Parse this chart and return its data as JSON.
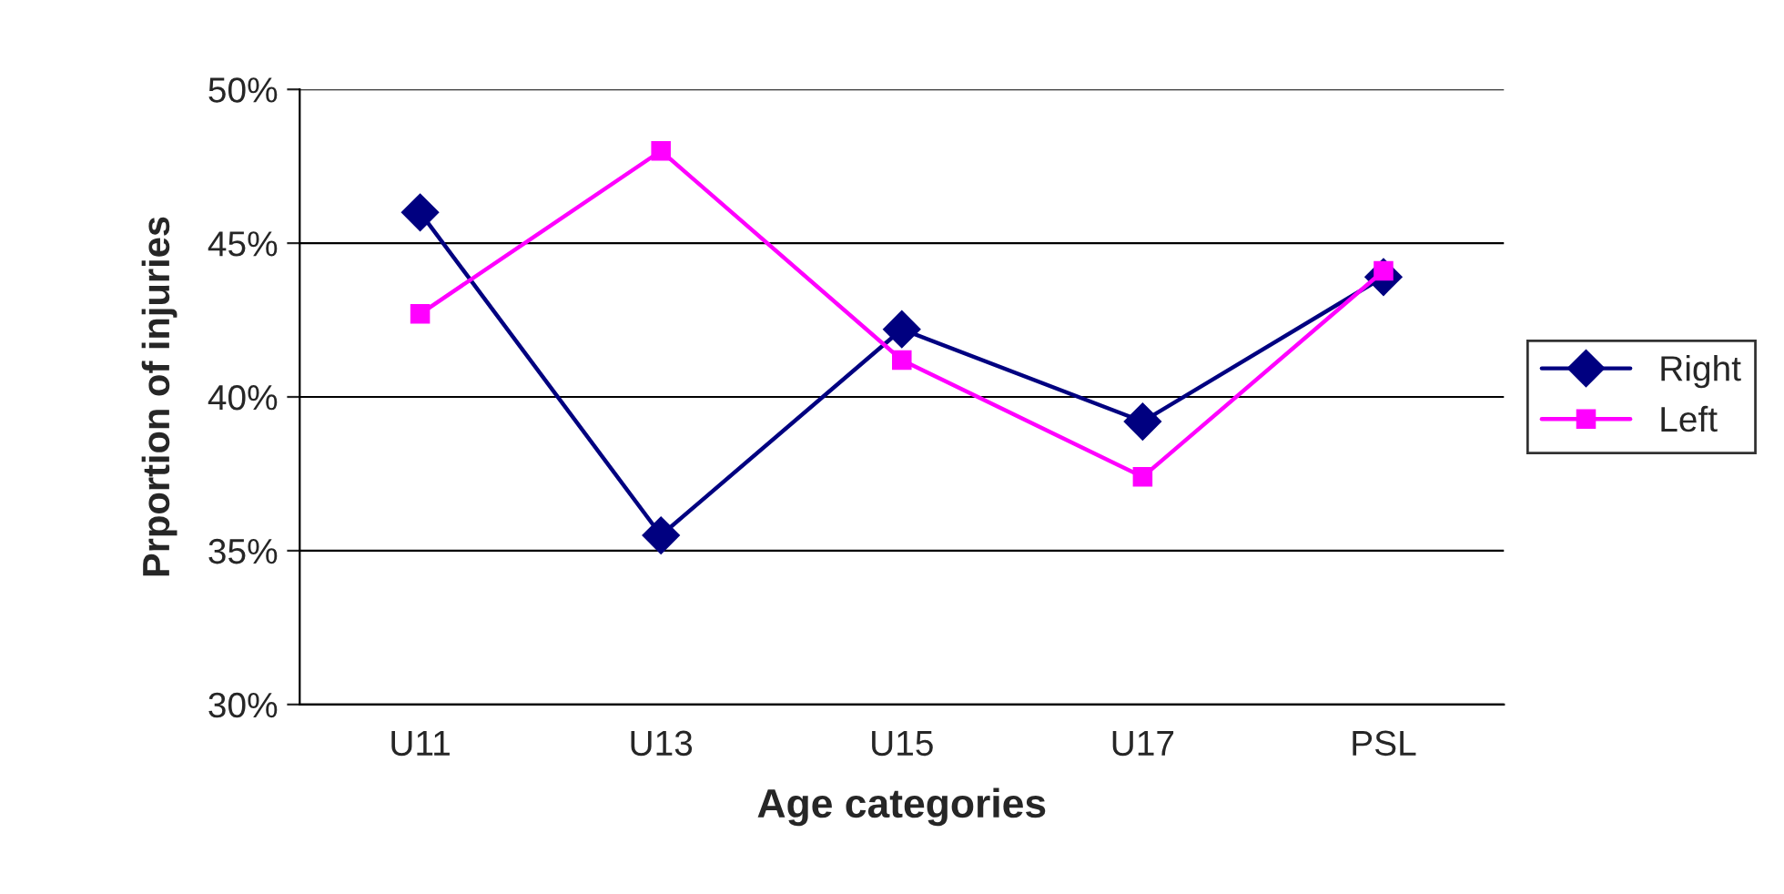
{
  "chart_data": {
    "type": "line",
    "xlabel": "Age categories",
    "ylabel": "Prportion of injuries",
    "categories": [
      "U11",
      "U13",
      "U15",
      "U17",
      "PSL"
    ],
    "series": [
      {
        "name": "Right",
        "color": "#000080",
        "values": [
          46.0,
          35.5,
          42.2,
          39.2,
          43.9
        ],
        "marker": "diamond"
      },
      {
        "name": "Left",
        "color": "#ff00ff",
        "values": [
          42.7,
          48.0,
          41.2,
          37.4,
          44.1
        ],
        "marker": "square"
      }
    ],
    "ylim": [
      30,
      50
    ],
    "yticks": [
      {
        "value": 30,
        "label": "30%"
      },
      {
        "value": 35,
        "label": "35%"
      },
      {
        "value": 40,
        "label": "40%"
      },
      {
        "value": 45,
        "label": "45%"
      },
      {
        "value": 50,
        "label": "50%"
      }
    ],
    "grid": "y",
    "legend": "right",
    "line_style": "solid"
  }
}
